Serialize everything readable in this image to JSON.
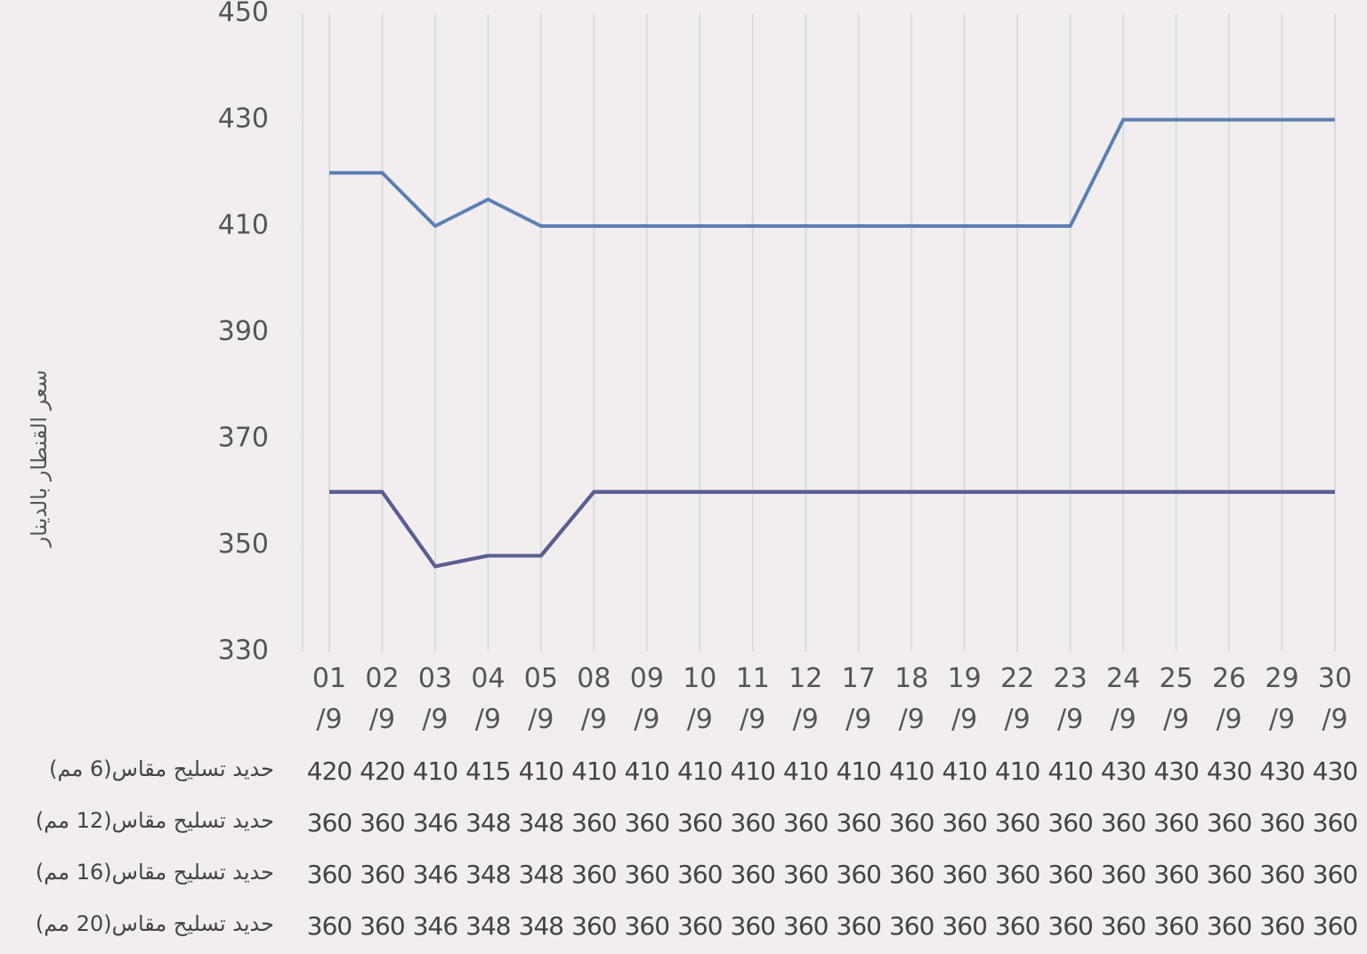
{
  "chart_data": {
    "type": "line",
    "y_label": "سعر القنطار بالدينار",
    "categories": [
      "01 /9",
      "02 /9",
      "03 /9",
      "04 /9",
      "05 /9",
      "08 /9",
      "09 /9",
      "10 /9",
      "11 /9",
      "12 /9",
      "17 /9",
      "18 /9",
      "19 /9",
      "22 /9",
      "23 /9",
      "24 /9",
      "25 /9",
      "26 /9",
      "29 /9",
      "30 /9"
    ],
    "series": [
      {
        "name": "حديد تسليح مقاس(6 مم)",
        "color": "#5b80b4",
        "values": [
          420,
          420,
          410,
          415,
          410,
          410,
          410,
          410,
          410,
          410,
          410,
          410,
          410,
          410,
          410,
          430,
          430,
          430,
          430,
          430
        ]
      },
      {
        "name": "حديد تسليح مقاس(12 مم)",
        "color": "#5a5e92",
        "values": [
          360,
          360,
          346,
          348,
          348,
          360,
          360,
          360,
          360,
          360,
          360,
          360,
          360,
          360,
          360,
          360,
          360,
          360,
          360,
          360
        ]
      },
      {
        "name": "حديد تسليح مقاس(16 مم)",
        "color": "#5a5e92",
        "values": [
          360,
          360,
          346,
          348,
          348,
          360,
          360,
          360,
          360,
          360,
          360,
          360,
          360,
          360,
          360,
          360,
          360,
          360,
          360,
          360
        ]
      },
      {
        "name": "حديد تسليح مقاس(20 مم)",
        "color": "#5a5e92",
        "values": [
          360,
          360,
          346,
          348,
          348,
          360,
          360,
          360,
          360,
          360,
          360,
          360,
          360,
          360,
          360,
          360,
          360,
          360,
          360,
          360
        ]
      }
    ],
    "ylim": [
      330,
      450
    ],
    "yticks": [
      330,
      350,
      370,
      390,
      410,
      430,
      450
    ],
    "grid": true
  }
}
